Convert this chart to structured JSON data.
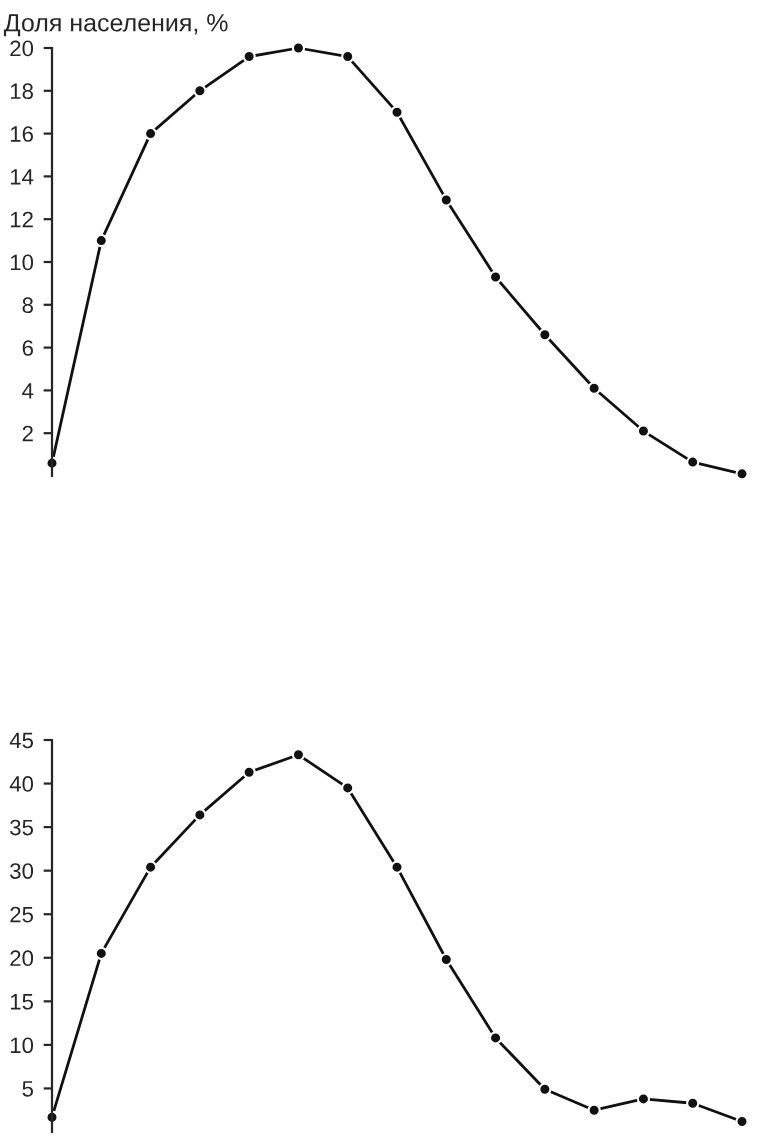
{
  "chart_data": [
    {
      "type": "line",
      "title": "Доля населения, %",
      "categories": [
        null,
        null,
        null,
        null,
        null,
        null,
        null,
        null,
        null,
        null,
        null,
        null,
        null,
        null,
        null
      ],
      "series": [
        {
          "color": "#111111",
          "values": [
            0.6,
            11.0,
            16.0,
            18.0,
            19.6,
            20.0,
            19.6,
            17.0,
            12.9,
            9.3,
            6.6,
            4.1,
            2.1,
            0.65,
            0.1
          ]
        }
      ],
      "ylim": [
        0,
        20
      ],
      "yticks": [
        2,
        4,
        6,
        8,
        10,
        12,
        14,
        16,
        18,
        20
      ],
      "tick_labels": "y",
      "marker": "circle",
      "grid": false,
      "legend": false
    },
    {
      "type": "line",
      "categories": [
        null,
        null,
        null,
        null,
        null,
        null,
        null,
        null,
        null,
        null,
        null,
        null,
        null,
        null,
        null
      ],
      "series": [
        {
          "color": "#111111",
          "values": [
            1.7,
            20.5,
            30.4,
            36.4,
            41.3,
            43.3,
            39.5,
            30.4,
            19.8,
            10.8,
            4.9,
            2.5,
            3.8,
            3.3,
            1.2
          ]
        }
      ],
      "ylim": [
        0,
        45
      ],
      "yticks": [
        5,
        10,
        15,
        20,
        25,
        30,
        35,
        40,
        45
      ],
      "tick_labels": "y",
      "marker": "circle",
      "grid": false,
      "legend": false
    }
  ]
}
